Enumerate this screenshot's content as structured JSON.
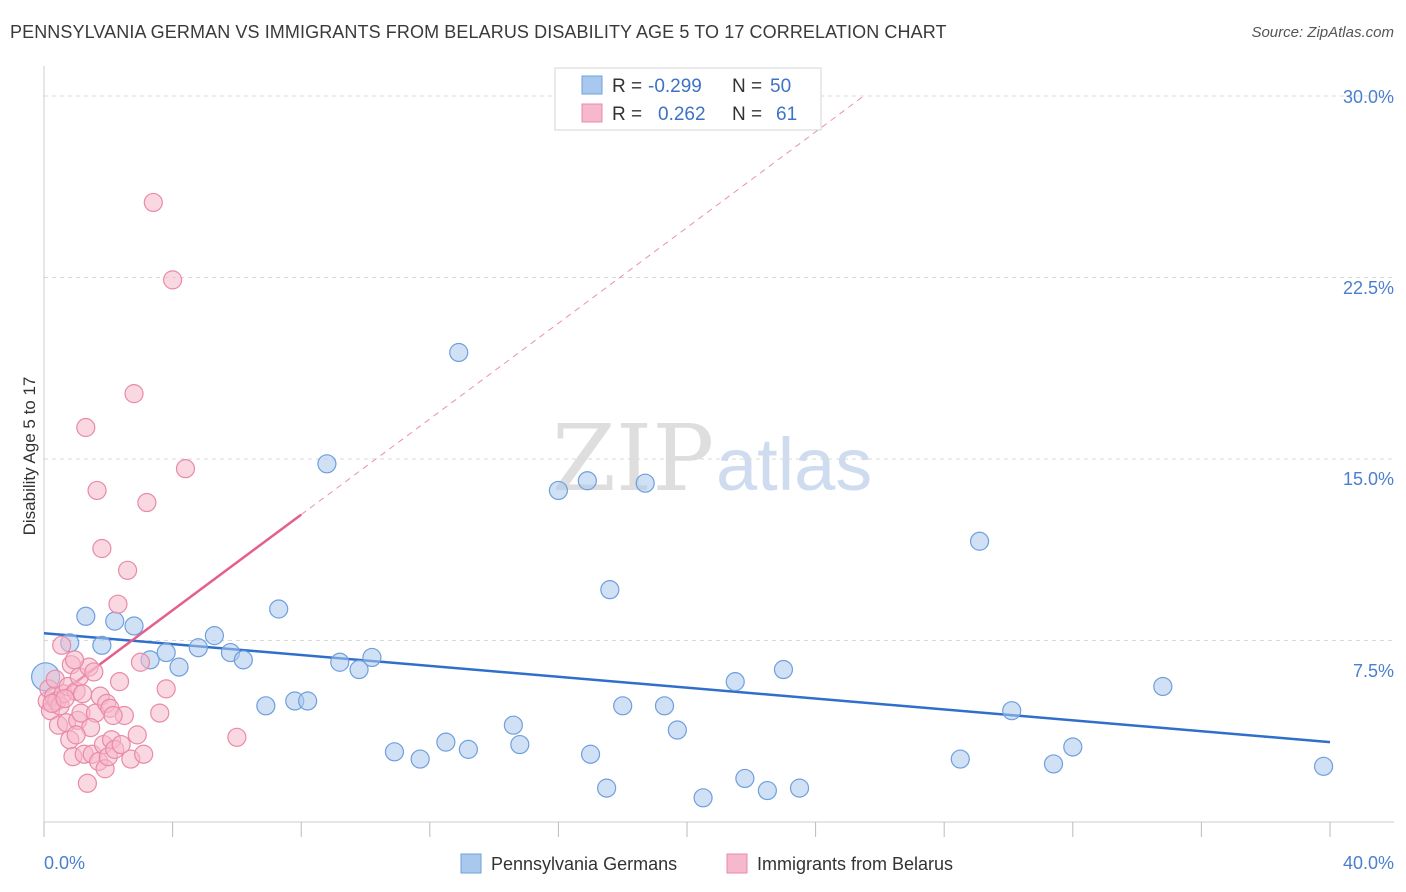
{
  "title": "PENNSYLVANIA GERMAN VS IMMIGRANTS FROM BELARUS DISABILITY AGE 5 TO 17 CORRELATION CHART",
  "source": "Source: ZipAtlas.com",
  "watermark": {
    "zip": "ZIP",
    "atlas": "atlas"
  },
  "colors": {
    "blue_fill": "#a9c8ee",
    "blue_stroke": "#6f9fdc",
    "blue_line": "#2f6fcb",
    "pink_fill": "#f6b8cb",
    "pink_stroke": "#e98aa8",
    "pink_line": "#e4608b",
    "tick_text": "#4a7fd0",
    "grid": "#d9d9d9"
  },
  "legend": {
    "rows": [
      {
        "r_label": "R =",
        "r_value": "-0.299",
        "n_label": "N =",
        "n_value": "50"
      },
      {
        "r_label": "R =",
        "r_value": "0.262",
        "n_label": "N =",
        "n_value": "61"
      }
    ]
  },
  "chart_data": {
    "type": "scatter",
    "title": "PENNSYLVANIA GERMAN VS IMMIGRANTS FROM BELARUS DISABILITY AGE 5 TO 17 CORRELATION CHART",
    "xlabel": "",
    "ylabel": "Disability Age 5 to 17",
    "xlim": [
      0,
      40
    ],
    "ylim": [
      0,
      30
    ],
    "x_tick_labels": [
      "0.0%",
      "40.0%"
    ],
    "y_ticks": [
      7.5,
      15.0,
      22.5,
      30.0
    ],
    "y_tick_labels": [
      "7.5%",
      "15.0%",
      "22.5%",
      "30.0%"
    ],
    "grid": true,
    "legend_position": "top-center",
    "series": [
      {
        "name": "Pennsylvania Germans",
        "color": "#6f9fdc",
        "trend": {
          "x0": 0,
          "y0": 7.8,
          "x1": 40,
          "y1": 3.3,
          "dashed_extension": false
        },
        "points": [
          [
            0.05,
            6.0
          ],
          [
            0.8,
            7.4
          ],
          [
            1.3,
            8.5
          ],
          [
            1.8,
            7.3
          ],
          [
            2.2,
            8.3
          ],
          [
            2.8,
            8.1
          ],
          [
            3.3,
            6.7
          ],
          [
            3.8,
            7.0
          ],
          [
            4.2,
            6.4
          ],
          [
            4.8,
            7.2
          ],
          [
            5.3,
            7.7
          ],
          [
            5.8,
            7.0
          ],
          [
            6.2,
            6.7
          ],
          [
            6.9,
            4.8
          ],
          [
            7.3,
            8.8
          ],
          [
            7.8,
            5.0
          ],
          [
            8.2,
            5.0
          ],
          [
            8.8,
            14.8
          ],
          [
            9.2,
            6.6
          ],
          [
            9.8,
            6.3
          ],
          [
            10.2,
            6.8
          ],
          [
            10.9,
            2.9
          ],
          [
            11.7,
            2.6
          ],
          [
            12.5,
            3.3
          ],
          [
            12.9,
            19.4
          ],
          [
            13.2,
            3.0
          ],
          [
            14.6,
            4.0
          ],
          [
            14.8,
            3.2
          ],
          [
            16.0,
            13.7
          ],
          [
            16.9,
            14.1
          ],
          [
            17.0,
            2.8
          ],
          [
            17.5,
            1.4
          ],
          [
            17.6,
            9.6
          ],
          [
            18.0,
            4.8
          ],
          [
            18.7,
            14.0
          ],
          [
            19.3,
            4.8
          ],
          [
            19.7,
            3.8
          ],
          [
            20.5,
            1.0
          ],
          [
            21.5,
            5.8
          ],
          [
            21.8,
            1.8
          ],
          [
            22.5,
            1.3
          ],
          [
            23.0,
            6.3
          ],
          [
            23.5,
            1.4
          ],
          [
            28.5,
            2.6
          ],
          [
            29.1,
            11.6
          ],
          [
            30.1,
            4.6
          ],
          [
            31.4,
            2.4
          ],
          [
            32.0,
            3.1
          ],
          [
            34.8,
            5.6
          ],
          [
            39.8,
            2.3
          ]
        ]
      },
      {
        "name": "Immigrants from Belarus",
        "color": "#e98aa8",
        "trend": {
          "x0": 0,
          "y0": 4.8,
          "x1": 8,
          "y1": 12.7,
          "dashed_to": [
            25.5,
            30.0
          ]
        },
        "points": [
          [
            0.1,
            5.0
          ],
          [
            0.15,
            5.5
          ],
          [
            0.2,
            4.6
          ],
          [
            0.3,
            5.2
          ],
          [
            0.35,
            5.9
          ],
          [
            0.4,
            5.0
          ],
          [
            0.45,
            4.0
          ],
          [
            0.5,
            4.8
          ],
          [
            0.55,
            7.3
          ],
          [
            0.6,
            5.3
          ],
          [
            0.7,
            4.1
          ],
          [
            0.75,
            5.6
          ],
          [
            0.8,
            3.4
          ],
          [
            0.85,
            6.5
          ],
          [
            0.9,
            2.7
          ],
          [
            1.0,
            5.4
          ],
          [
            1.05,
            4.2
          ],
          [
            1.1,
            6.0
          ],
          [
            1.15,
            4.5
          ],
          [
            1.2,
            5.3
          ],
          [
            1.25,
            2.8
          ],
          [
            1.3,
            16.3
          ],
          [
            1.35,
            1.6
          ],
          [
            1.4,
            6.4
          ],
          [
            1.5,
            2.8
          ],
          [
            1.55,
            6.2
          ],
          [
            1.6,
            4.5
          ],
          [
            1.65,
            13.7
          ],
          [
            1.7,
            2.5
          ],
          [
            1.75,
            5.2
          ],
          [
            1.8,
            11.3
          ],
          [
            1.85,
            3.2
          ],
          [
            1.9,
            2.2
          ],
          [
            1.95,
            4.9
          ],
          [
            2.0,
            2.7
          ],
          [
            2.05,
            4.7
          ],
          [
            2.1,
            3.4
          ],
          [
            2.2,
            3.0
          ],
          [
            2.3,
            9.0
          ],
          [
            2.4,
            3.2
          ],
          [
            2.5,
            4.4
          ],
          [
            2.6,
            10.4
          ],
          [
            2.7,
            2.6
          ],
          [
            2.8,
            17.7
          ],
          [
            2.9,
            3.6
          ],
          [
            3.0,
            6.6
          ],
          [
            3.1,
            2.8
          ],
          [
            3.2,
            13.2
          ],
          [
            3.4,
            25.6
          ],
          [
            3.6,
            4.5
          ],
          [
            3.8,
            5.5
          ],
          [
            4.0,
            22.4
          ],
          [
            4.4,
            14.6
          ],
          [
            6.0,
            3.5
          ],
          [
            0.25,
            4.9
          ],
          [
            0.65,
            5.1
          ],
          [
            0.95,
            6.7
          ],
          [
            1.45,
            3.9
          ],
          [
            2.15,
            4.4
          ],
          [
            2.35,
            5.8
          ],
          [
            1.0,
            3.6
          ]
        ]
      }
    ]
  }
}
